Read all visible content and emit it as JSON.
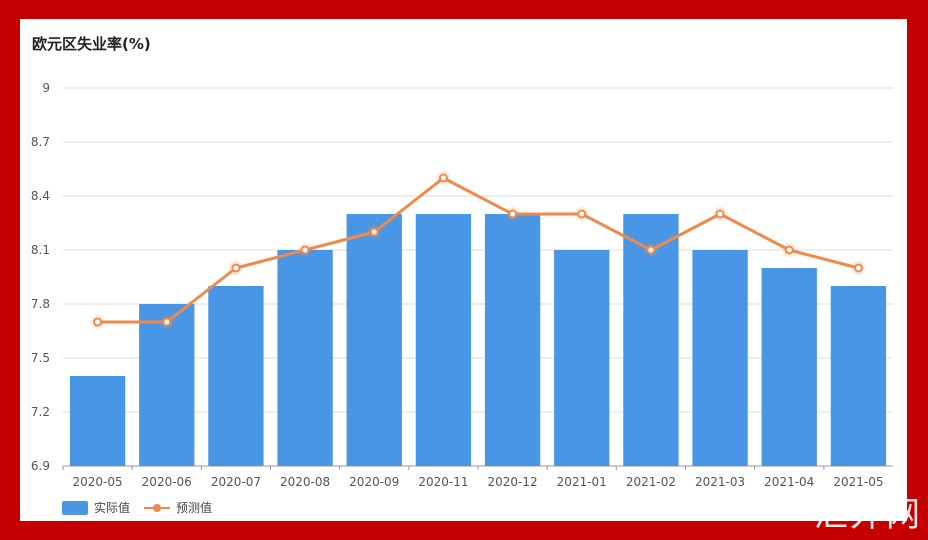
{
  "title": "欧元区失业率(%)",
  "watermark": "汇外网",
  "colors": {
    "bar": "#4a96e6",
    "line": "#f0894a",
    "grid": "#dddddd",
    "frame": "#c40000"
  },
  "chart_data": {
    "type": "bar",
    "title": "欧元区失业率(%)",
    "categories": [
      "2020-05",
      "2020-06",
      "2020-07",
      "2020-08",
      "2020-09",
      "2020-11",
      "2020-12",
      "2021-01",
      "2021-02",
      "2021-03",
      "2021-04",
      "2021-05"
    ],
    "series": [
      {
        "name": "实际值",
        "type": "bar",
        "values": [
          7.4,
          7.8,
          7.9,
          8.1,
          8.3,
          8.3,
          8.3,
          8.1,
          8.3,
          8.1,
          8.0,
          7.9
        ]
      },
      {
        "name": "预测值",
        "type": "line",
        "values": [
          7.7,
          7.7,
          8.0,
          8.1,
          8.2,
          8.5,
          8.3,
          8.3,
          8.1,
          8.3,
          8.1,
          8.0
        ]
      }
    ],
    "yticks": [
      "6.9",
      "7.2",
      "7.5",
      "7.8",
      "8.1",
      "8.4",
      "8.7",
      "9"
    ],
    "ylim": [
      6.9,
      9.0
    ],
    "grid": true,
    "legend": "bottom-left"
  }
}
